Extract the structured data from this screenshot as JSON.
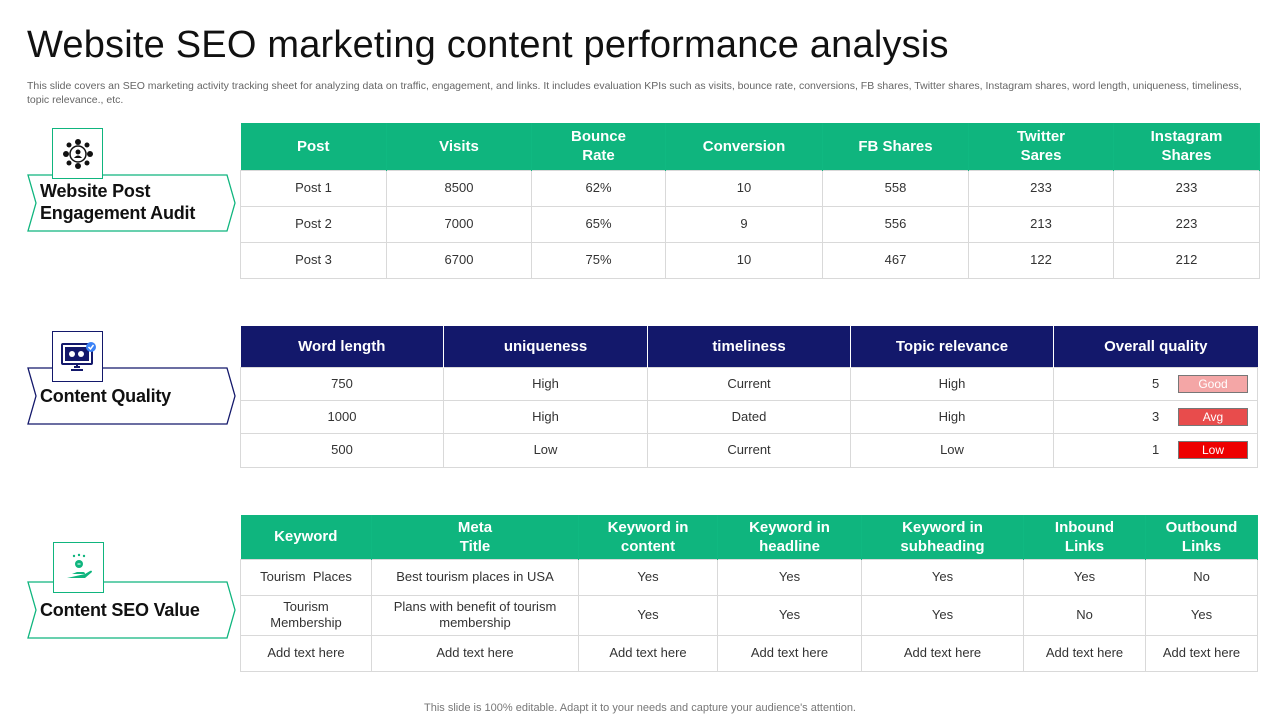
{
  "title": "Website SEO marketing content performance analysis",
  "subtitle": "This slide covers an SEO marketing activity tracking sheet for analyzing data on traffic, engagement, and links. It includes evaluation KPIs such as visits, bounce rate, conversions, FB shares, Twitter shares, Instagram shares, word length, uniqueness, timeliness, topic relevance., etc.",
  "footer": "This slide is 100% editable. Adapt it to your needs and capture your audience's attention.",
  "colors": {
    "green": "#0fb57e",
    "navy": "#13186b",
    "good": "#f4a6a6",
    "avg": "#e84c4c",
    "low": "#ee0000"
  },
  "sections": {
    "engagement": {
      "label_line1": "Website Post",
      "label_line2": "Engagement Audit",
      "icon": "people-network-icon",
      "headers": [
        "Post",
        "Visits",
        "Bounce Rate",
        "Conversion",
        "FB Shares",
        "Twitter Sares",
        "Instagram Shares"
      ],
      "rows": [
        [
          "Post 1",
          "8500",
          "62%",
          "10",
          "558",
          "233",
          "233"
        ],
        [
          "Post 2",
          "7000",
          "65%",
          "9",
          "556",
          "213",
          "223"
        ],
        [
          "Post 3",
          "6700",
          "75%",
          "10",
          "467",
          "122",
          "212"
        ]
      ]
    },
    "quality": {
      "label": "Content Quality",
      "icon": "monitor-settings-icon",
      "headers": [
        "Word length",
        "uniqueness",
        "timeliness",
        "Topic relevance",
        "Overall quality"
      ],
      "rows": [
        {
          "word_length": "750",
          "uniqueness": "High",
          "timeliness": "Current",
          "relevance": "High",
          "score": "5",
          "rating": "Good"
        },
        {
          "word_length": "1000",
          "uniqueness": "High",
          "timeliness": "Dated",
          "relevance": "High",
          "score": "3",
          "rating": "Avg"
        },
        {
          "word_length": "500",
          "uniqueness": "Low",
          "timeliness": "Current",
          "relevance": "Low",
          "score": "1",
          "rating": "Low"
        }
      ]
    },
    "seo": {
      "label": "Content SEO Value",
      "icon": "hand-money-icon",
      "headers": [
        "Keyword",
        "Meta Title",
        "Keyword in content",
        "Keyword in headline",
        "Keyword in subheading",
        "Inbound Links",
        "Outbound Links"
      ],
      "rows": [
        [
          "Tourism  Places",
          "Best tourism places in USA",
          "Yes",
          "Yes",
          "Yes",
          "Yes",
          "No"
        ],
        [
          "Tourism Membership",
          "Plans with benefit of tourism membership",
          "Yes",
          "Yes",
          "Yes",
          "No",
          "Yes"
        ],
        [
          "Add text here",
          "Add text here",
          "Add text here",
          "Add text here",
          "Add text here",
          "Add text here",
          "Add text here"
        ]
      ]
    }
  }
}
